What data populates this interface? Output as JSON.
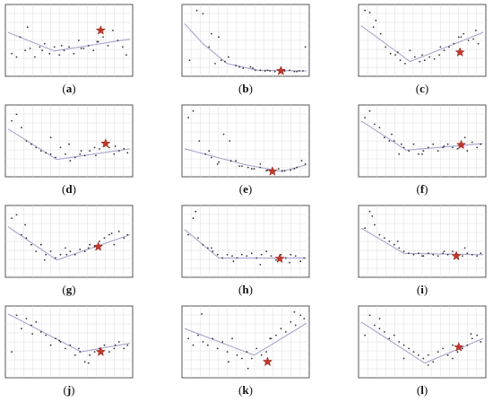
{
  "chart_data": [
    {
      "type": "scatter",
      "caption": "(a)",
      "label": "a",
      "x": [
        0.03,
        0.07,
        0.1,
        0.14,
        0.18,
        0.22,
        0.26,
        0.3,
        0.34,
        0.38,
        0.42,
        0.46,
        0.5,
        0.54,
        0.58,
        0.62,
        0.66,
        0.7,
        0.74,
        0.78,
        0.82,
        0.86,
        0.9,
        0.94,
        0.97,
        0.16,
        0.28,
        0.44,
        0.6,
        0.73
      ],
      "y": [
        0.3,
        0.25,
        0.55,
        0.35,
        0.38,
        0.25,
        0.4,
        0.45,
        0.3,
        0.4,
        0.28,
        0.35,
        0.4,
        0.3,
        0.5,
        0.38,
        0.42,
        0.35,
        0.48,
        0.55,
        0.42,
        0.65,
        0.5,
        0.4,
        0.28,
        0.7,
        0.35,
        0.42,
        0.38,
        0.48
      ],
      "fit": [
        [
          0,
          0.62
        ],
        [
          0.38,
          0.34
        ],
        [
          1,
          0.52
        ]
      ],
      "star": [
        0.76,
        0.65
      ]
    },
    {
      "type": "scatter",
      "caption": "(b)",
      "label": "b",
      "x": [
        0.04,
        0.1,
        0.15,
        0.2,
        0.25,
        0.3,
        0.36,
        0.42,
        0.48,
        0.54,
        0.58,
        0.62,
        0.66,
        0.7,
        0.74,
        0.78,
        0.82,
        0.86,
        0.9,
        0.94,
        0.97,
        0.22,
        0.33,
        0.45,
        0.56,
        0.68,
        0.8,
        0.92,
        0.99,
        0.28
      ],
      "y": [
        0.2,
        0.95,
        0.9,
        0.4,
        0.15,
        0.2,
        0.25,
        0.12,
        0.08,
        0.1,
        0.05,
        0.05,
        0.04,
        0.04,
        0.03,
        0.06,
        0.04,
        0.05,
        0.03,
        0.04,
        0.04,
        0.6,
        0.18,
        0.1,
        0.08,
        0.05,
        0.04,
        0.03,
        0.4,
        0.55
      ],
      "fit": [
        [
          0,
          0.75
        ],
        [
          0.15,
          0.45
        ],
        [
          0.35,
          0.15
        ],
        [
          0.6,
          0.05
        ],
        [
          1,
          0.04
        ]
      ],
      "star": [
        0.79,
        0.04
      ]
    },
    {
      "type": "scatter",
      "caption": "(c)",
      "label": "c",
      "x": [
        0.03,
        0.07,
        0.12,
        0.16,
        0.2,
        0.24,
        0.28,
        0.32,
        0.36,
        0.4,
        0.44,
        0.48,
        0.52,
        0.56,
        0.6,
        0.64,
        0.68,
        0.72,
        0.76,
        0.8,
        0.84,
        0.88,
        0.92,
        0.96,
        0.1,
        0.3,
        0.5,
        0.65,
        0.82,
        0.94
      ],
      "y": [
        0.95,
        0.92,
        0.8,
        0.6,
        0.4,
        0.3,
        0.28,
        0.2,
        0.15,
        0.35,
        0.25,
        0.18,
        0.2,
        0.25,
        0.22,
        0.28,
        0.35,
        0.4,
        0.45,
        0.55,
        0.6,
        0.5,
        0.52,
        0.45,
        0.7,
        0.32,
        0.28,
        0.4,
        0.55,
        0.65
      ],
      "fit": [
        [
          0,
          0.72
        ],
        [
          0.4,
          0.18
        ],
        [
          1,
          0.62
        ]
      ],
      "star": [
        0.81,
        0.32
      ]
    },
    {
      "type": "scatter",
      "caption": "(d)",
      "label": "d",
      "x": [
        0.03,
        0.07,
        0.11,
        0.15,
        0.19,
        0.23,
        0.27,
        0.31,
        0.35,
        0.39,
        0.43,
        0.47,
        0.51,
        0.55,
        0.59,
        0.63,
        0.67,
        0.71,
        0.75,
        0.79,
        0.83,
        0.87,
        0.91,
        0.95,
        0.98,
        0.5,
        0.35,
        0.6,
        0.72,
        0.88
      ],
      "y": [
        0.8,
        0.9,
        0.7,
        0.5,
        0.45,
        0.4,
        0.35,
        0.32,
        0.3,
        0.25,
        0.4,
        0.3,
        0.2,
        0.25,
        0.3,
        0.28,
        0.35,
        0.4,
        0.38,
        0.42,
        0.4,
        0.3,
        0.35,
        0.38,
        0.32,
        0.45,
        0.55,
        0.35,
        0.28,
        0.42
      ],
      "fit": [
        [
          0,
          0.68
        ],
        [
          0.4,
          0.22
        ],
        [
          1,
          0.38
        ]
      ],
      "star": [
        0.8,
        0.46
      ]
    },
    {
      "type": "scatter",
      "caption": "(e)",
      "label": "e",
      "x": [
        0.03,
        0.07,
        0.12,
        0.17,
        0.22,
        0.27,
        0.32,
        0.37,
        0.42,
        0.47,
        0.52,
        0.57,
        0.62,
        0.67,
        0.72,
        0.77,
        0.82,
        0.87,
        0.92,
        0.96,
        0.28,
        0.38,
        0.45,
        0.55,
        0.68,
        0.8,
        0.9,
        0.99,
        0.2,
        0.62
      ],
      "y": [
        0.85,
        0.95,
        0.5,
        0.3,
        0.25,
        0.15,
        0.6,
        0.5,
        0.2,
        0.12,
        0.1,
        0.08,
        0.1,
        0.05,
        0.06,
        0.08,
        0.05,
        0.06,
        0.1,
        0.2,
        0.18,
        0.2,
        0.12,
        0.08,
        0.06,
        0.05,
        0.08,
        0.15,
        0.35,
        0.15
      ],
      "fit": [
        [
          0,
          0.38
        ],
        [
          0.5,
          0.14
        ],
        [
          0.8,
          0.04
        ],
        [
          1,
          0.14
        ]
      ],
      "star": [
        0.72,
        0.04
      ]
    },
    {
      "type": "scatter",
      "caption": "(f)",
      "label": "f",
      "x": [
        0.03,
        0.07,
        0.11,
        0.15,
        0.19,
        0.23,
        0.27,
        0.31,
        0.35,
        0.39,
        0.43,
        0.47,
        0.51,
        0.55,
        0.59,
        0.63,
        0.67,
        0.71,
        0.75,
        0.79,
        0.83,
        0.87,
        0.91,
        0.95,
        0.98,
        0.25,
        0.5,
        0.68,
        0.85,
        0.33
      ],
      "y": [
        0.85,
        0.95,
        0.75,
        0.7,
        0.55,
        0.5,
        0.5,
        0.3,
        0.4,
        0.35,
        0.45,
        0.3,
        0.35,
        0.4,
        0.45,
        0.35,
        0.4,
        0.45,
        0.4,
        0.38,
        0.45,
        0.35,
        0.48,
        0.4,
        0.45,
        0.6,
        0.3,
        0.42,
        0.55,
        0.45
      ],
      "fit": [
        [
          0,
          0.8
        ],
        [
          0.37,
          0.36
        ],
        [
          1,
          0.46
        ]
      ],
      "star": [
        0.82,
        0.44
      ]
    },
    {
      "type": "scatter",
      "caption": "(g)",
      "label": "g",
      "x": [
        0.03,
        0.07,
        0.11,
        0.15,
        0.19,
        0.23,
        0.27,
        0.31,
        0.35,
        0.39,
        0.43,
        0.47,
        0.51,
        0.55,
        0.59,
        0.63,
        0.67,
        0.71,
        0.75,
        0.79,
        0.83,
        0.87,
        0.91,
        0.95,
        0.98,
        0.14,
        0.3,
        0.48,
        0.66,
        0.85
      ],
      "y": [
        0.85,
        0.9,
        0.6,
        0.55,
        0.45,
        0.35,
        0.45,
        0.3,
        0.35,
        0.25,
        0.3,
        0.4,
        0.35,
        0.3,
        0.38,
        0.35,
        0.45,
        0.42,
        0.5,
        0.55,
        0.6,
        0.45,
        0.65,
        0.55,
        0.6,
        0.75,
        0.22,
        0.3,
        0.4,
        0.62
      ],
      "fit": [
        [
          0,
          0.72
        ],
        [
          0.4,
          0.22
        ],
        [
          1,
          0.6
        ]
      ],
      "star": [
        0.74,
        0.42
      ]
    },
    {
      "type": "scatter",
      "caption": "(h)",
      "label": "h",
      "x": [
        0.03,
        0.07,
        0.11,
        0.15,
        0.19,
        0.23,
        0.27,
        0.31,
        0.35,
        0.39,
        0.43,
        0.47,
        0.51,
        0.55,
        0.59,
        0.63,
        0.67,
        0.71,
        0.75,
        0.79,
        0.83,
        0.87,
        0.91,
        0.95,
        0.98,
        0.09,
        0.22,
        0.4,
        0.62,
        0.86
      ],
      "y": [
        0.6,
        0.85,
        0.55,
        0.45,
        0.4,
        0.35,
        0.3,
        0.25,
        0.3,
        0.28,
        0.25,
        0.3,
        0.28,
        0.32,
        0.25,
        0.3,
        0.35,
        0.28,
        0.22,
        0.3,
        0.25,
        0.3,
        0.28,
        0.2,
        0.25,
        0.95,
        0.4,
        0.2,
        0.15,
        0.18
      ],
      "fit": [
        [
          0,
          0.68
        ],
        [
          0.28,
          0.25
        ],
        [
          1,
          0.25
        ]
      ],
      "star": [
        0.78,
        0.24
      ]
    },
    {
      "type": "scatter",
      "caption": "(i)",
      "label": "i",
      "x": [
        0.03,
        0.07,
        0.11,
        0.15,
        0.19,
        0.23,
        0.27,
        0.31,
        0.35,
        0.39,
        0.43,
        0.47,
        0.51,
        0.55,
        0.59,
        0.63,
        0.67,
        0.71,
        0.75,
        0.79,
        0.83,
        0.87,
        0.91,
        0.95,
        0.98,
        0.09,
        0.3,
        0.5,
        0.68,
        0.85
      ],
      "y": [
        0.7,
        0.95,
        0.75,
        0.6,
        0.55,
        0.5,
        0.45,
        0.4,
        0.35,
        0.32,
        0.3,
        0.32,
        0.28,
        0.32,
        0.3,
        0.28,
        0.32,
        0.3,
        0.35,
        0.3,
        0.28,
        0.32,
        0.3,
        0.28,
        0.32,
        0.88,
        0.5,
        0.28,
        0.35,
        0.4
      ],
      "fit": [
        [
          0,
          0.7
        ],
        [
          0.35,
          0.32
        ],
        [
          1,
          0.3
        ]
      ],
      "star": [
        0.78,
        0.28
      ]
    },
    {
      "type": "scatter",
      "caption": "(j)",
      "label": "j",
      "x": [
        0.03,
        0.07,
        0.11,
        0.15,
        0.19,
        0.23,
        0.27,
        0.31,
        0.35,
        0.39,
        0.43,
        0.47,
        0.51,
        0.55,
        0.59,
        0.63,
        0.67,
        0.71,
        0.75,
        0.79,
        0.83,
        0.87,
        0.91,
        0.95,
        0.98,
        0.2,
        0.42,
        0.58,
        0.66,
        0.88
      ],
      "y": [
        0.35,
        0.9,
        0.7,
        0.85,
        0.75,
        0.8,
        0.65,
        0.6,
        0.45,
        0.55,
        0.5,
        0.4,
        0.45,
        0.3,
        0.35,
        0.2,
        0.3,
        0.35,
        0.4,
        0.45,
        0.35,
        0.4,
        0.5,
        0.4,
        0.45,
        0.62,
        0.52,
        0.4,
        0.18,
        0.45
      ],
      "fit": [
        [
          0,
          0.92
        ],
        [
          0.6,
          0.35
        ],
        [
          1,
          0.48
        ]
      ],
      "star": [
        0.76,
        0.35
      ]
    },
    {
      "type": "scatter",
      "caption": "(k)",
      "label": "k",
      "x": [
        0.03,
        0.07,
        0.11,
        0.15,
        0.19,
        0.23,
        0.27,
        0.31,
        0.35,
        0.39,
        0.43,
        0.47,
        0.51,
        0.55,
        0.59,
        0.63,
        0.67,
        0.71,
        0.75,
        0.79,
        0.83,
        0.87,
        0.91,
        0.95,
        0.98,
        0.14,
        0.36,
        0.52,
        0.7,
        0.9
      ],
      "y": [
        0.55,
        0.45,
        0.6,
        0.5,
        0.45,
        0.55,
        0.4,
        0.5,
        0.35,
        0.55,
        0.3,
        0.25,
        0.35,
        0.25,
        0.4,
        0.3,
        0.35,
        0.55,
        0.6,
        0.7,
        0.65,
        0.8,
        0.75,
        0.9,
        0.85,
        0.92,
        0.2,
        0.1,
        0.55,
        0.95
      ],
      "fit": [
        [
          0,
          0.7
        ],
        [
          0.57,
          0.3
        ],
        [
          1,
          0.78
        ]
      ],
      "star": [
        0.68,
        0.2
      ]
    },
    {
      "type": "scatter",
      "caption": "(l)",
      "label": "l",
      "x": [
        0.03,
        0.07,
        0.11,
        0.15,
        0.19,
        0.23,
        0.27,
        0.31,
        0.35,
        0.39,
        0.43,
        0.47,
        0.51,
        0.55,
        0.59,
        0.63,
        0.67,
        0.71,
        0.75,
        0.79,
        0.83,
        0.87,
        0.91,
        0.95,
        0.98,
        0.15,
        0.35,
        0.55,
        0.75,
        0.9
      ],
      "y": [
        0.6,
        0.9,
        0.75,
        0.7,
        0.65,
        0.55,
        0.6,
        0.5,
        0.45,
        0.4,
        0.35,
        0.3,
        0.25,
        0.3,
        0.2,
        0.35,
        0.4,
        0.3,
        0.45,
        0.35,
        0.4,
        0.45,
        0.55,
        0.6,
        0.5,
        0.85,
        0.25,
        0.15,
        0.25,
        0.62
      ],
      "fit": [
        [
          0,
          0.8
        ],
        [
          0.52,
          0.18
        ],
        [
          1,
          0.55
        ]
      ],
      "star": [
        0.8,
        0.42
      ]
    }
  ]
}
